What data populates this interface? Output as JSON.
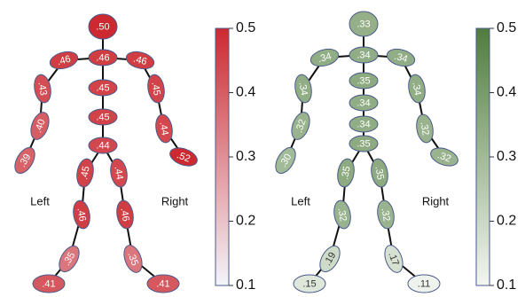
{
  "chart_data": [
    {
      "type": "skeleton",
      "color": "#cc2a30",
      "low_color": "#f3f5fb",
      "values": [
        0.5,
        0.46,
        0.46,
        0.46,
        0.43,
        0.4,
        0.39,
        0.45,
        0.44,
        0.52,
        0.45,
        0.45,
        0.44,
        0.45,
        0.46,
        0.35,
        0.41,
        0.44,
        0.46,
        0.35,
        0.41
      ],
      "value_labels": [
        ".50",
        ".46",
        ".46",
        ".46",
        ".43",
        ".40",
        ".39",
        ".45",
        ".44",
        ".52",
        ".45",
        ".45",
        ".44",
        ".45",
        ".46",
        ".35",
        ".41",
        ".44",
        ".46",
        ".35",
        ".41"
      ],
      "ylim": [
        0.1,
        0.5
      ],
      "yticks": [
        0.1,
        0.2,
        0.3,
        0.4,
        0.5
      ],
      "left_label": "Left",
      "right_label": "Right"
    },
    {
      "type": "skeleton",
      "color": "#4f7d3c",
      "low_color": "#f3f6f2",
      "values": [
        0.33,
        0.34,
        0.34,
        0.34,
        0.34,
        0.32,
        0.3,
        0.34,
        0.32,
        0.32,
        0.35,
        0.34,
        0.34,
        0.35,
        0.35,
        0.32,
        0.19,
        0.15,
        0.35,
        0.32,
        0.17,
        0.11
      ],
      "value_labels": [
        ".33",
        ".34",
        ".34",
        ".34",
        ".34",
        ".32",
        ".30",
        ".34",
        ".32",
        ".32",
        ".35",
        ".34",
        ".34",
        ".35",
        ".35",
        ".32",
        ".19",
        ".15",
        ".35",
        ".32",
        ".17",
        ".11"
      ],
      "ylim": [
        0.1,
        0.5
      ],
      "yticks": [
        0.1,
        0.2,
        0.3,
        0.4,
        0.5
      ],
      "left_label": "Left",
      "right_label": "Right"
    }
  ]
}
